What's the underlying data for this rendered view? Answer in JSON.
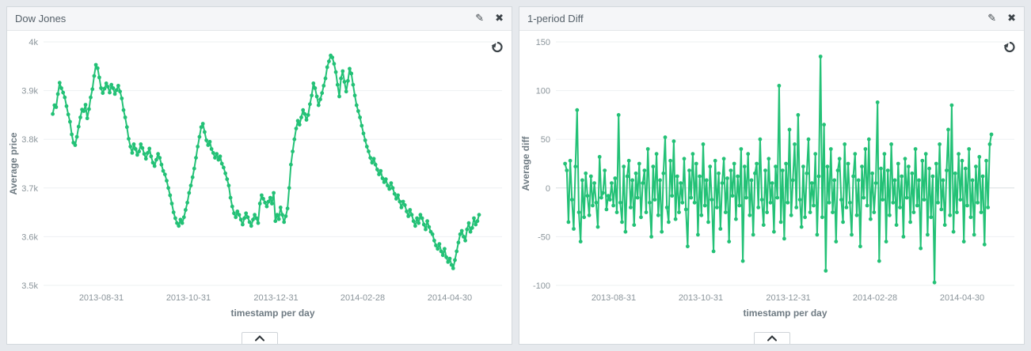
{
  "colors": {
    "series": "#23c176",
    "grid": "#eef0f2",
    "zero_line": "#d9dde0",
    "tick_text": "#8b959b",
    "axis_title_text": "#6f7b83",
    "page_background": "#e6e9ed",
    "panel_border": "#d4d9dd",
    "icon": "#3c4348"
  },
  "icons": {
    "edit_glyph": "✎",
    "close_glyph": "✖",
    "spy_toggle": "chevron-up-icon",
    "undo": "circular-arrow-icon"
  },
  "chart_data": [
    {
      "type": "line",
      "title": "Dow Jones",
      "xlabel": "timestamp per day",
      "ylabel": "Average price",
      "ylim": [
        3500,
        4000
      ],
      "grid": true,
      "legend": "none",
      "yticks": [
        {
          "v": 3500,
          "label": "3.5k"
        },
        {
          "v": 3600,
          "label": "3.6k"
        },
        {
          "v": 3700,
          "label": "3.7k"
        },
        {
          "v": 3800,
          "label": "3.8k"
        },
        {
          "v": 3900,
          "label": "3.9k"
        },
        {
          "v": 4000,
          "label": "4k"
        }
      ],
      "xticks": [
        {
          "f": 0.126,
          "label": "2013-08-31"
        },
        {
          "f": 0.316,
          "label": "2013-10-31"
        },
        {
          "f": 0.507,
          "label": "2013-12-31"
        },
        {
          "f": 0.696,
          "label": "2014-02-28"
        },
        {
          "f": 0.886,
          "label": "2014-04-30"
        }
      ],
      "x_start_frac": 0.02,
      "x_end_frac": 0.95,
      "values": [
        3852,
        3870,
        3866,
        3893,
        3916,
        3905,
        3896,
        3886,
        3868,
        3851,
        3836,
        3810,
        3793,
        3788,
        3805,
        3826,
        3845,
        3861,
        3858,
        3871,
        3843,
        3862,
        3886,
        3903,
        3930,
        3953,
        3946,
        3927,
        3905,
        3895,
        3904,
        3915,
        3908,
        3896,
        3912,
        3905,
        3893,
        3901,
        3910,
        3898,
        3884,
        3860,
        3845,
        3825,
        3801,
        3785,
        3772,
        3790,
        3780,
        3768,
        3775,
        3790,
        3782,
        3770,
        3760,
        3772,
        3781,
        3765,
        3752,
        3745,
        3758,
        3770,
        3762,
        3748,
        3735,
        3728,
        3715,
        3700,
        3685,
        3668,
        3650,
        3638,
        3628,
        3622,
        3635,
        3628,
        3640,
        3655,
        3670,
        3690,
        3705,
        3722,
        3740,
        3762,
        3785,
        3805,
        3825,
        3832,
        3815,
        3798,
        3788,
        3795,
        3780,
        3772,
        3762,
        3770,
        3758,
        3765,
        3750,
        3742,
        3730,
        3718,
        3705,
        3680,
        3662,
        3648,
        3640,
        3652,
        3645,
        3635,
        3625,
        3638,
        3648,
        3640,
        3630,
        3622,
        3635,
        3645,
        3638,
        3628,
        3668,
        3685,
        3678,
        3670,
        3662,
        3672,
        3680,
        3668,
        3690,
        3632,
        3645,
        3636,
        3660,
        3645,
        3630,
        3642,
        3658,
        3700,
        3748,
        3775,
        3800,
        3822,
        3838,
        3830,
        3845,
        3860,
        3852,
        3840,
        3850,
        3872,
        3890,
        3915,
        3905,
        3888,
        3870,
        3882,
        3895,
        3910,
        3925,
        3948,
        3960,
        3972,
        3968,
        3955,
        3938,
        3912,
        3888,
        3925,
        3940,
        3918,
        3898,
        3920,
        3945,
        3935,
        3912,
        3890,
        3870,
        3858,
        3845,
        3828,
        3812,
        3798,
        3785,
        3775,
        3762,
        3752,
        3760,
        3748,
        3738,
        3728,
        3735,
        3720,
        3712,
        3718,
        3705,
        3698,
        3710,
        3700,
        3688,
        3678,
        3685,
        3672,
        3660,
        3672,
        3665,
        3652,
        3642,
        3655,
        3645,
        3632,
        3622,
        3638,
        3628,
        3645,
        3638,
        3625,
        3615,
        3632,
        3620,
        3610,
        3605,
        3592,
        3582,
        3575,
        3585,
        3570,
        3562,
        3575,
        3558,
        3548,
        3555,
        3542,
        3535,
        3552,
        3570,
        3588,
        3605,
        3612,
        3600,
        3592,
        3615,
        3628,
        3610,
        3618,
        3638,
        3625,
        3632,
        3645
      ]
    },
    {
      "type": "line",
      "title": "1-period Diff",
      "xlabel": "timestamp per day",
      "ylabel": "Average diff",
      "ylim": [
        -100,
        150
      ],
      "grid": true,
      "legend": "none",
      "yticks": [
        {
          "v": -100,
          "label": "-100"
        },
        {
          "v": -50,
          "label": "-50"
        },
        {
          "v": 0,
          "label": "0"
        },
        {
          "v": 50,
          "label": "50"
        },
        {
          "v": 100,
          "label": "100"
        },
        {
          "v": 150,
          "label": "150"
        }
      ],
      "xticks": [
        {
          "f": 0.126,
          "label": "2013-08-31"
        },
        {
          "f": 0.316,
          "label": "2013-10-31"
        },
        {
          "f": 0.507,
          "label": "2013-12-31"
        },
        {
          "f": 0.696,
          "label": "2014-02-28"
        },
        {
          "f": 0.886,
          "label": "2014-04-30"
        }
      ],
      "x_start_frac": 0.02,
      "x_end_frac": 0.95,
      "values": [
        25,
        18,
        -35,
        28,
        -12,
        -42,
        22,
        80,
        -25,
        -55,
        8,
        -30,
        15,
        -8,
        -28,
        12,
        -18,
        5,
        -15,
        -40,
        32,
        -10,
        -5,
        18,
        -22,
        -8,
        -12,
        5,
        -18,
        10,
        -25,
        75,
        -15,
        -35,
        22,
        -45,
        12,
        28,
        -20,
        8,
        -38,
        15,
        -10,
        25,
        -30,
        5,
        18,
        -25,
        40,
        -15,
        -50,
        22,
        -12,
        35,
        -28,
        8,
        -45,
        15,
        52,
        -20,
        -35,
        28,
        -8,
        48,
        -32,
        12,
        -25,
        5,
        -15,
        30,
        -22,
        -60,
        18,
        -10,
        35,
        -15,
        25,
        -48,
        12,
        -28,
        45,
        -18,
        8,
        -35,
        22,
        -12,
        -65,
        28,
        -20,
        15,
        -42,
        5,
        30,
        -25,
        10,
        -55,
        18,
        -8,
        25,
        -32,
        12,
        -18,
        40,
        -75,
        22,
        -10,
        35,
        -28,
        8,
        -48,
        15,
        25,
        -20,
        50,
        -12,
        -38,
        18,
        -25,
        30,
        -15,
        5,
        -45,
        22,
        -10,
        105,
        -35,
        18,
        -52,
        25,
        -15,
        60,
        -28,
        8,
        45,
        -20,
        75,
        -12,
        -40,
        22,
        -30,
        15,
        50,
        -25,
        5,
        -18,
        35,
        -48,
        12,
        135,
        -30,
        65,
        -85,
        22,
        -15,
        40,
        -25,
        8,
        -55,
        18,
        30,
        -12,
        -35,
        45,
        -20,
        25,
        -15,
        -48,
        12,
        35,
        -28,
        8,
        -60,
        22,
        -10,
        40,
        -18,
        50,
        -32,
        15,
        -25,
        5,
        88,
        -75,
        20,
        -12,
        35,
        -55,
        18,
        -28,
        45,
        -15,
        8,
        -38,
        25,
        -20,
        12,
        -50,
        30,
        -10,
        22,
        -35,
        15,
        -25,
        40,
        -18,
        8,
        -62,
        28,
        -12,
        35,
        -48,
        20,
        -30,
        12,
        -97,
        25,
        -15,
        45,
        -22,
        8,
        -38,
        18,
        60,
        -28,
        85,
        -45,
        15,
        -25,
        35,
        -12,
        28,
        -55,
        20,
        -18,
        40,
        -30,
        8,
        -48,
        22,
        -15,
        32,
        -25,
        12,
        -58,
        28,
        -20,
        45,
        55
      ]
    }
  ]
}
